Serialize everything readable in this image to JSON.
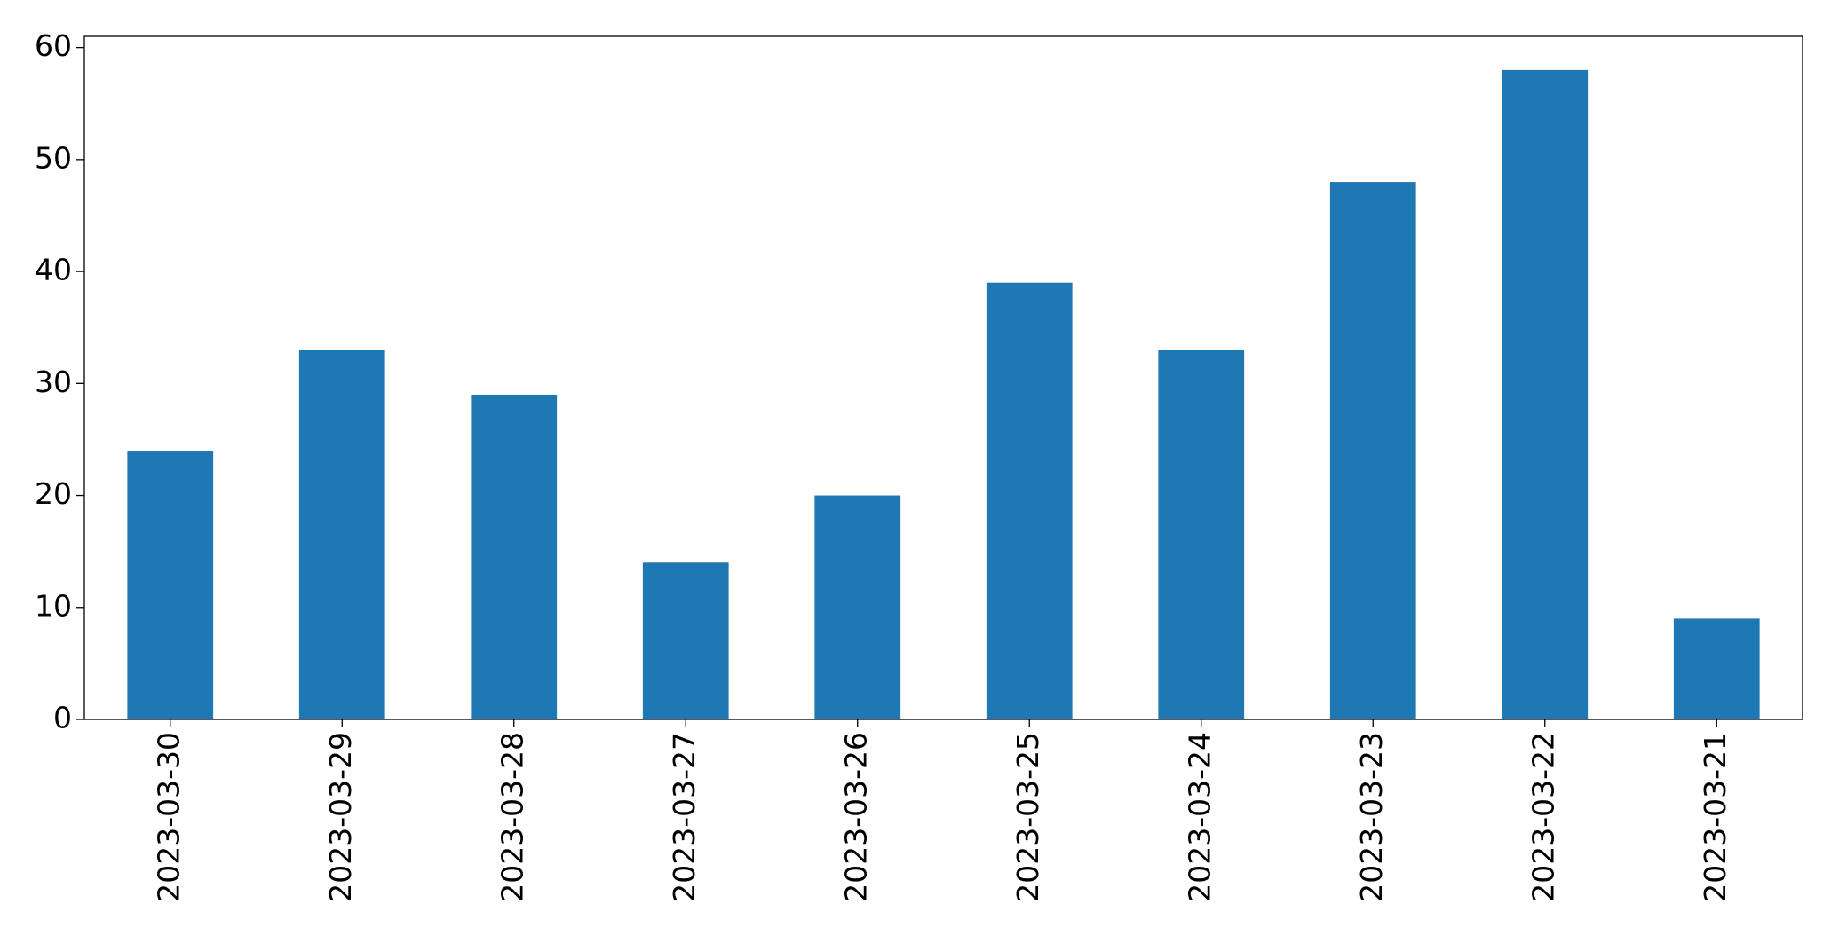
{
  "chart_data": {
    "type": "bar",
    "categories": [
      "2023-03-30",
      "2023-03-29",
      "2023-03-28",
      "2023-03-27",
      "2023-03-26",
      "2023-03-25",
      "2023-03-24",
      "2023-03-23",
      "2023-03-22",
      "2023-03-21"
    ],
    "values": [
      24,
      33,
      29,
      14,
      20,
      39,
      33,
      48,
      58,
      9
    ],
    "color": "#1f77b4",
    "ylim": [
      0,
      61
    ],
    "yticks": [
      0,
      10,
      20,
      30,
      40,
      50,
      60
    ],
    "grid": false
  }
}
